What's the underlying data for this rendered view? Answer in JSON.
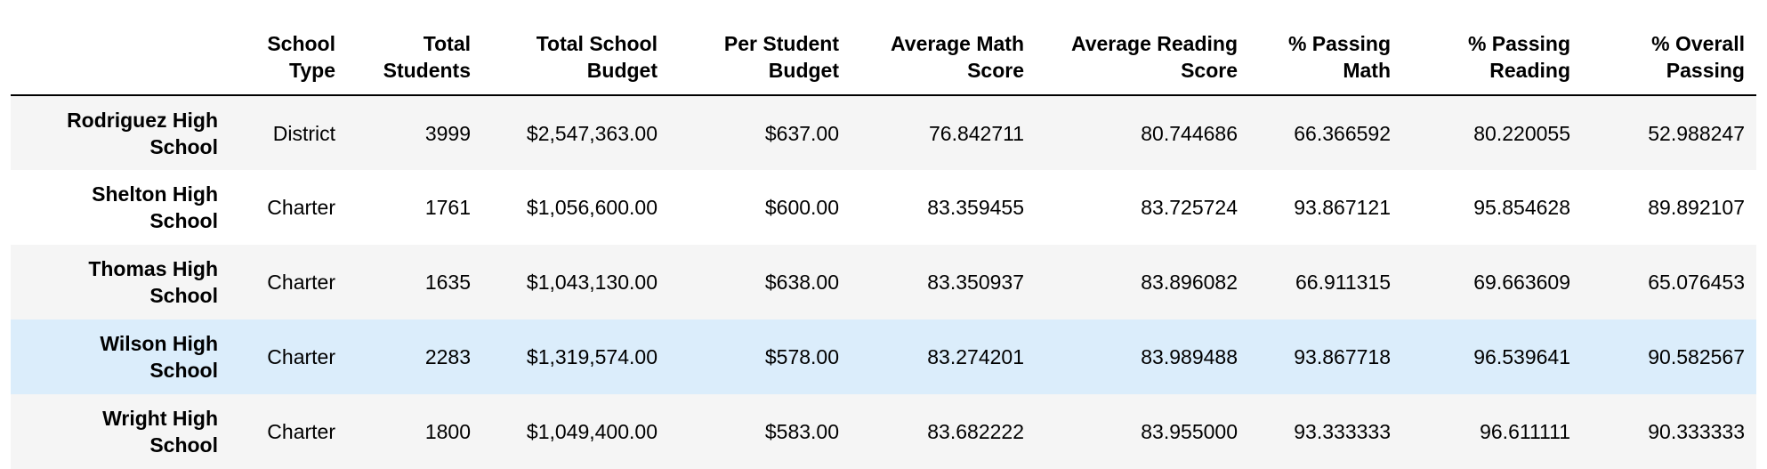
{
  "table": {
    "columns": [
      "",
      "School\nType",
      "Total\nStudents",
      "Total School\nBudget",
      "Per Student\nBudget",
      "Average Math\nScore",
      "Average Reading\nScore",
      "% Passing\nMath",
      "% Passing\nReading",
      "% Overall\nPassing"
    ],
    "rows": [
      {
        "index": "Rodriguez High\nSchool",
        "cells": [
          "District",
          "3999",
          "$2,547,363.00",
          "$637.00",
          "76.842711",
          "80.744686",
          "66.366592",
          "80.220055",
          "52.988247"
        ]
      },
      {
        "index": "Shelton High\nSchool",
        "cells": [
          "Charter",
          "1761",
          "$1,056,600.00",
          "$600.00",
          "83.359455",
          "83.725724",
          "93.867121",
          "95.854628",
          "89.892107"
        ]
      },
      {
        "index": "Thomas High\nSchool",
        "cells": [
          "Charter",
          "1635",
          "$1,043,130.00",
          "$638.00",
          "83.350937",
          "83.896082",
          "66.911315",
          "69.663609",
          "65.076453"
        ]
      },
      {
        "index": "Wilson High\nSchool",
        "cells": [
          "Charter",
          "2283",
          "$1,319,574.00",
          "$578.00",
          "83.274201",
          "83.989488",
          "93.867718",
          "96.539641",
          "90.582567"
        ]
      },
      {
        "index": "Wright High\nSchool",
        "cells": [
          "Charter",
          "1800",
          "$1,049,400.00",
          "$583.00",
          "83.682222",
          "83.955000",
          "93.333333",
          "96.611111",
          "90.333333"
        ]
      }
    ]
  },
  "colors": {
    "row_alt": "#f5f5f5",
    "row_hover": "#dbedfb",
    "header_rule": "#000000"
  }
}
